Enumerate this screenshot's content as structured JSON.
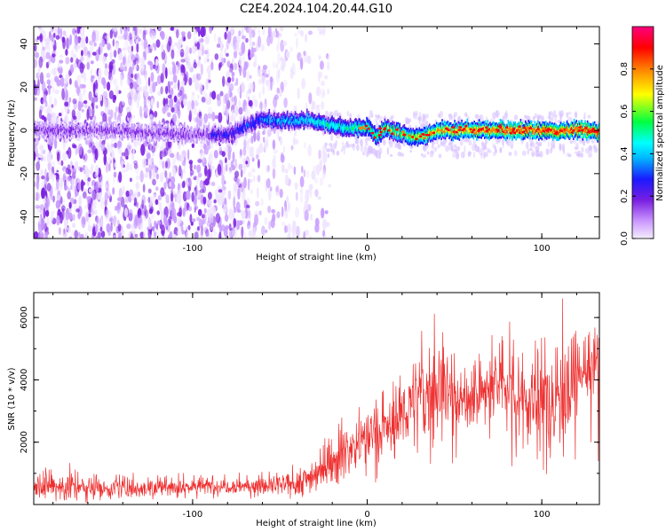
{
  "title": "C2E4.2024.104.20.44.G10",
  "chart_data": [
    {
      "type": "heatmap",
      "xlabel": "Height of straight line (km)",
      "ylabel": "Frequency (Hz)",
      "xlim": [
        -191,
        133
      ],
      "ylim": [
        -50,
        48
      ],
      "x_ticks": [
        -100,
        0,
        100
      ],
      "x_tick_labels": [
        "-100",
        "0",
        "100"
      ],
      "y_ticks": [
        -40,
        -20,
        0,
        20,
        40
      ],
      "y_tick_labels": [
        "-40",
        "-20",
        "0",
        "20",
        "40"
      ],
      "colorbar": {
        "label": "Normalized spectral amplitude",
        "range": [
          0,
          1
        ],
        "ticks": [
          0.0,
          0.2,
          0.4,
          0.6,
          0.8
        ],
        "tick_labels": [
          "0.0",
          "0.2",
          "0.4",
          "0.6",
          "0.8"
        ]
      },
      "ridge": {
        "x": [
          -191,
          -150,
          -100,
          -80,
          -70,
          -60,
          -50,
          -40,
          -30,
          -20,
          -10,
          0,
          5,
          10,
          20,
          30,
          40,
          50,
          60,
          70,
          80,
          90,
          100,
          110,
          120,
          133
        ],
        "freq": [
          0,
          0,
          -2,
          -2,
          2,
          5,
          4,
          5,
          4,
          2,
          1,
          2,
          -3,
          1,
          -2,
          -3,
          0,
          0,
          0,
          0,
          0,
          0,
          0,
          0,
          0,
          0
        ]
      },
      "grid": false
    },
    {
      "type": "line",
      "xlabel": "Height of straight line (km)",
      "ylabel": "SNR (10 * v/v)",
      "xlim": [
        -191,
        133
      ],
      "ylim": [
        0,
        6800
      ],
      "x_ticks": [
        -100,
        0,
        100
      ],
      "x_tick_labels": [
        "-100",
        "0",
        "100"
      ],
      "y_ticks": [
        2000,
        4000,
        6000
      ],
      "y_tick_labels": [
        "2000",
        "4000",
        "6000"
      ],
      "series": [
        {
          "color": "#ee3030",
          "x": [
            -191,
            -170,
            -150,
            -120,
            -100,
            -80,
            -60,
            -45,
            -35,
            -25,
            -15,
            -5,
            5,
            15,
            20,
            25,
            30,
            35,
            40,
            45,
            50,
            55,
            60,
            65,
            70,
            75,
            80,
            85,
            90,
            95,
            100,
            105,
            110,
            115,
            120,
            125,
            133
          ],
          "mean": [
            600,
            550,
            520,
            550,
            580,
            600,
            600,
            620,
            800,
            1200,
            1600,
            2000,
            2300,
            2500,
            2900,
            3300,
            3400,
            3600,
            3800,
            3700,
            3500,
            3300,
            3400,
            3500,
            3700,
            3800,
            3900,
            3800,
            3400,
            3100,
            3200,
            3400,
            3600,
            3900,
            4100,
            4300,
            4400
          ],
          "peak": [
            1200,
            1400,
            1000,
            1100,
            1000,
            1000,
            1100,
            1200,
            1600,
            2200,
            2800,
            3200,
            3500,
            4000,
            4800,
            5200,
            5600,
            6400,
            6200,
            5800,
            5000,
            4600,
            4800,
            5000,
            5600,
            5800,
            6000,
            5800,
            5000,
            5200,
            6500,
            6600,
            6700,
            6500,
            5900,
            5800,
            6200
          ]
        }
      ],
      "grid": false
    }
  ]
}
